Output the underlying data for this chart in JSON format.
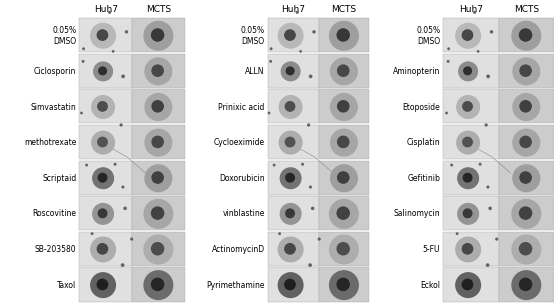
{
  "panel1_labels": [
    "0.05%\nDMSO",
    "Ciclosporin",
    "Simvastatin",
    "methotrexate",
    "Scriptaid",
    "Roscovitine",
    "SB-203580",
    "Taxol"
  ],
  "panel2_labels": [
    "0.05%\nDMSO",
    "ALLN",
    "Prinixic acid",
    "Cycloeximide",
    "Doxorubicin",
    "vinblastine",
    "ActinomycinD",
    "Pyrimethamine"
  ],
  "panel3_labels": [
    "0.05%\nDMSO",
    "Aminopterin",
    "Etoposide",
    "Cisplatin",
    "Gefitinib",
    "Salinomycin",
    "5-FU",
    "Eckol"
  ],
  "col_headers": [
    "Huh7",
    "MCTS"
  ],
  "figure_bg": "#ffffff",
  "label_fontsize": 5.5,
  "header_fontsize": 6.5
}
